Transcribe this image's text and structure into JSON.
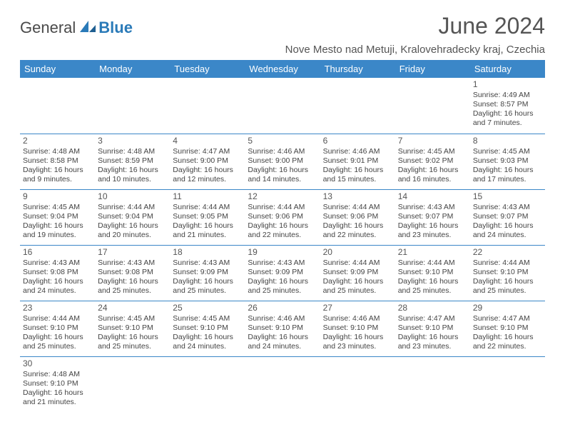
{
  "logo": {
    "general": "General",
    "blue": "Blue"
  },
  "header": {
    "title": "June 2024",
    "location": "Nove Mesto nad Metuji, Kralovehradecky kraj, Czechia"
  },
  "colors": {
    "header_bg": "#3b87c8",
    "header_text": "#ffffff",
    "rule": "#3b87c8",
    "logo_blue": "#2a7ab8",
    "text": "#444444"
  },
  "weekdays": [
    "Sunday",
    "Monday",
    "Tuesday",
    "Wednesday",
    "Thursday",
    "Friday",
    "Saturday"
  ],
  "weeks": [
    [
      null,
      null,
      null,
      null,
      null,
      null,
      {
        "n": "1",
        "sr": "Sunrise: 4:49 AM",
        "ss": "Sunset: 8:57 PM",
        "d1": "Daylight: 16 hours",
        "d2": "and 7 minutes."
      }
    ],
    [
      {
        "n": "2",
        "sr": "Sunrise: 4:48 AM",
        "ss": "Sunset: 8:58 PM",
        "d1": "Daylight: 16 hours",
        "d2": "and 9 minutes."
      },
      {
        "n": "3",
        "sr": "Sunrise: 4:48 AM",
        "ss": "Sunset: 8:59 PM",
        "d1": "Daylight: 16 hours",
        "d2": "and 10 minutes."
      },
      {
        "n": "4",
        "sr": "Sunrise: 4:47 AM",
        "ss": "Sunset: 9:00 PM",
        "d1": "Daylight: 16 hours",
        "d2": "and 12 minutes."
      },
      {
        "n": "5",
        "sr": "Sunrise: 4:46 AM",
        "ss": "Sunset: 9:00 PM",
        "d1": "Daylight: 16 hours",
        "d2": "and 14 minutes."
      },
      {
        "n": "6",
        "sr": "Sunrise: 4:46 AM",
        "ss": "Sunset: 9:01 PM",
        "d1": "Daylight: 16 hours",
        "d2": "and 15 minutes."
      },
      {
        "n": "7",
        "sr": "Sunrise: 4:45 AM",
        "ss": "Sunset: 9:02 PM",
        "d1": "Daylight: 16 hours",
        "d2": "and 16 minutes."
      },
      {
        "n": "8",
        "sr": "Sunrise: 4:45 AM",
        "ss": "Sunset: 9:03 PM",
        "d1": "Daylight: 16 hours",
        "d2": "and 17 minutes."
      }
    ],
    [
      {
        "n": "9",
        "sr": "Sunrise: 4:45 AM",
        "ss": "Sunset: 9:04 PM",
        "d1": "Daylight: 16 hours",
        "d2": "and 19 minutes."
      },
      {
        "n": "10",
        "sr": "Sunrise: 4:44 AM",
        "ss": "Sunset: 9:04 PM",
        "d1": "Daylight: 16 hours",
        "d2": "and 20 minutes."
      },
      {
        "n": "11",
        "sr": "Sunrise: 4:44 AM",
        "ss": "Sunset: 9:05 PM",
        "d1": "Daylight: 16 hours",
        "d2": "and 21 minutes."
      },
      {
        "n": "12",
        "sr": "Sunrise: 4:44 AM",
        "ss": "Sunset: 9:06 PM",
        "d1": "Daylight: 16 hours",
        "d2": "and 22 minutes."
      },
      {
        "n": "13",
        "sr": "Sunrise: 4:44 AM",
        "ss": "Sunset: 9:06 PM",
        "d1": "Daylight: 16 hours",
        "d2": "and 22 minutes."
      },
      {
        "n": "14",
        "sr": "Sunrise: 4:43 AM",
        "ss": "Sunset: 9:07 PM",
        "d1": "Daylight: 16 hours",
        "d2": "and 23 minutes."
      },
      {
        "n": "15",
        "sr": "Sunrise: 4:43 AM",
        "ss": "Sunset: 9:07 PM",
        "d1": "Daylight: 16 hours",
        "d2": "and 24 minutes."
      }
    ],
    [
      {
        "n": "16",
        "sr": "Sunrise: 4:43 AM",
        "ss": "Sunset: 9:08 PM",
        "d1": "Daylight: 16 hours",
        "d2": "and 24 minutes."
      },
      {
        "n": "17",
        "sr": "Sunrise: 4:43 AM",
        "ss": "Sunset: 9:08 PM",
        "d1": "Daylight: 16 hours",
        "d2": "and 25 minutes."
      },
      {
        "n": "18",
        "sr": "Sunrise: 4:43 AM",
        "ss": "Sunset: 9:09 PM",
        "d1": "Daylight: 16 hours",
        "d2": "and 25 minutes."
      },
      {
        "n": "19",
        "sr": "Sunrise: 4:43 AM",
        "ss": "Sunset: 9:09 PM",
        "d1": "Daylight: 16 hours",
        "d2": "and 25 minutes."
      },
      {
        "n": "20",
        "sr": "Sunrise: 4:44 AM",
        "ss": "Sunset: 9:09 PM",
        "d1": "Daylight: 16 hours",
        "d2": "and 25 minutes."
      },
      {
        "n": "21",
        "sr": "Sunrise: 4:44 AM",
        "ss": "Sunset: 9:10 PM",
        "d1": "Daylight: 16 hours",
        "d2": "and 25 minutes."
      },
      {
        "n": "22",
        "sr": "Sunrise: 4:44 AM",
        "ss": "Sunset: 9:10 PM",
        "d1": "Daylight: 16 hours",
        "d2": "and 25 minutes."
      }
    ],
    [
      {
        "n": "23",
        "sr": "Sunrise: 4:44 AM",
        "ss": "Sunset: 9:10 PM",
        "d1": "Daylight: 16 hours",
        "d2": "and 25 minutes."
      },
      {
        "n": "24",
        "sr": "Sunrise: 4:45 AM",
        "ss": "Sunset: 9:10 PM",
        "d1": "Daylight: 16 hours",
        "d2": "and 25 minutes."
      },
      {
        "n": "25",
        "sr": "Sunrise: 4:45 AM",
        "ss": "Sunset: 9:10 PM",
        "d1": "Daylight: 16 hours",
        "d2": "and 24 minutes."
      },
      {
        "n": "26",
        "sr": "Sunrise: 4:46 AM",
        "ss": "Sunset: 9:10 PM",
        "d1": "Daylight: 16 hours",
        "d2": "and 24 minutes."
      },
      {
        "n": "27",
        "sr": "Sunrise: 4:46 AM",
        "ss": "Sunset: 9:10 PM",
        "d1": "Daylight: 16 hours",
        "d2": "and 23 minutes."
      },
      {
        "n": "28",
        "sr": "Sunrise: 4:47 AM",
        "ss": "Sunset: 9:10 PM",
        "d1": "Daylight: 16 hours",
        "d2": "and 23 minutes."
      },
      {
        "n": "29",
        "sr": "Sunrise: 4:47 AM",
        "ss": "Sunset: 9:10 PM",
        "d1": "Daylight: 16 hours",
        "d2": "and 22 minutes."
      }
    ],
    [
      {
        "n": "30",
        "sr": "Sunrise: 4:48 AM",
        "ss": "Sunset: 9:10 PM",
        "d1": "Daylight: 16 hours",
        "d2": "and 21 minutes."
      },
      null,
      null,
      null,
      null,
      null,
      null
    ]
  ]
}
